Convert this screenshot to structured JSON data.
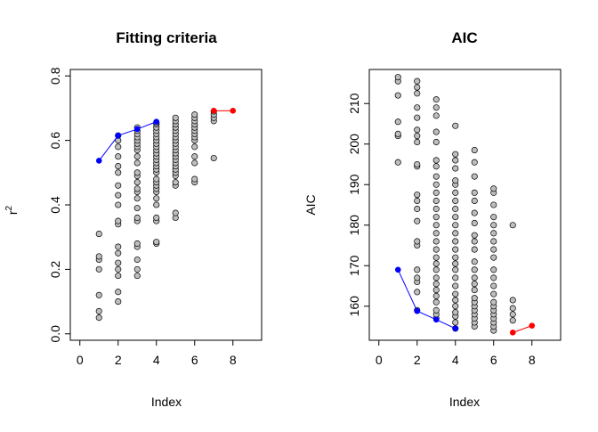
{
  "chart_data": [
    {
      "type": "scatter",
      "title": "Fitting criteria",
      "xlabel": "Index",
      "ylabel": "r",
      "ylabel_superscript": "2",
      "xlim": [
        -0.5,
        9.5
      ],
      "ylim": [
        -0.02,
        0.82
      ],
      "xticks": [
        0,
        2,
        4,
        6,
        8
      ],
      "yticks": [
        0.0,
        0.2,
        0.4,
        0.6,
        0.8
      ],
      "xtick_labels": [
        "0",
        "2",
        "4",
        "6",
        "8"
      ],
      "ytick_labels": [
        "0.0",
        "0.2",
        "0.4",
        "0.6",
        "0.8"
      ],
      "grid": false,
      "point_color": "#bebebe",
      "scatter_points": {
        "1": [
          0.05,
          0.07,
          0.12,
          0.2,
          0.23,
          0.24,
          0.31
        ],
        "2": [
          0.1,
          0.13,
          0.18,
          0.2,
          0.22,
          0.25,
          0.27,
          0.34,
          0.35,
          0.4,
          0.43,
          0.46,
          0.5,
          0.52,
          0.55,
          0.58,
          0.6,
          0.615
        ],
        "3": [
          0.18,
          0.2,
          0.23,
          0.27,
          0.28,
          0.35,
          0.36,
          0.39,
          0.42,
          0.44,
          0.45,
          0.47,
          0.49,
          0.5,
          0.53,
          0.55,
          0.57,
          0.58,
          0.59,
          0.6,
          0.61,
          0.62,
          0.63,
          0.64
        ],
        "4": [
          0.28,
          0.285,
          0.35,
          0.36,
          0.4,
          0.42,
          0.44,
          0.45,
          0.46,
          0.47,
          0.48,
          0.5,
          0.51,
          0.52,
          0.53,
          0.54,
          0.55,
          0.56,
          0.57,
          0.58,
          0.59,
          0.6,
          0.61,
          0.62,
          0.63,
          0.64,
          0.65,
          0.655
        ],
        "5": [
          0.36,
          0.375,
          0.46,
          0.47,
          0.49,
          0.5,
          0.51,
          0.52,
          0.53,
          0.54,
          0.55,
          0.56,
          0.57,
          0.58,
          0.59,
          0.6,
          0.61,
          0.62,
          0.63,
          0.64,
          0.65,
          0.66,
          0.67
        ],
        "6": [
          0.47,
          0.48,
          0.53,
          0.55,
          0.58,
          0.6,
          0.61,
          0.62,
          0.63,
          0.64,
          0.65,
          0.66,
          0.67,
          0.68
        ],
        "7": [
          0.545,
          0.66,
          0.67,
          0.68,
          0.69
        ]
      },
      "series": [
        {
          "color": "#0000ff",
          "x": [
            1,
            2,
            3,
            4
          ],
          "y": [
            0.537,
            0.615,
            0.635,
            0.658
          ]
        },
        {
          "color": "#ff0000",
          "x": [
            7,
            8
          ],
          "y": [
            0.692,
            0.692
          ]
        }
      ]
    },
    {
      "type": "scatter",
      "title": "AIC",
      "xlabel": "Index",
      "ylabel": "AIC",
      "xlim": [
        -0.5,
        9.5
      ],
      "ylim": [
        151.6,
        218.4
      ],
      "xticks": [
        0,
        2,
        4,
        6,
        8
      ],
      "yticks": [
        160,
        170,
        180,
        190,
        200,
        210
      ],
      "xtick_labels": [
        "0",
        "2",
        "4",
        "6",
        "8"
      ],
      "ytick_labels": [
        "160",
        "170",
        "180",
        "190",
        "200",
        "210"
      ],
      "grid": false,
      "point_color": "#bebebe",
      "scatter_points": {
        "1": [
          195.5,
          202,
          202.5,
          205.5,
          212,
          215.5,
          216.5
        ],
        "2": [
          159,
          163.5,
          166,
          167,
          169,
          175,
          176,
          181,
          184,
          186,
          187.5,
          194.5,
          195,
          200.5,
          202,
          203.5,
          206.5,
          209,
          212.5,
          214,
          215.5
        ],
        "3": [
          157,
          158,
          159,
          161,
          162.5,
          164,
          165.5,
          167,
          169,
          170.5,
          172,
          174,
          176,
          178,
          180,
          182,
          184,
          186,
          188,
          190,
          192,
          194.5,
          196,
          200.5,
          203,
          207,
          209,
          211
        ],
        "4": [
          154.5,
          156,
          157.5,
          158.5,
          160,
          161.5,
          163,
          165,
          167,
          169,
          170.5,
          172,
          174,
          176,
          178,
          180,
          182,
          184,
          186,
          188,
          190,
          191,
          194,
          196,
          197.5,
          204.5
        ],
        "5": [
          155,
          156,
          157,
          158,
          159,
          160,
          161,
          162,
          164,
          165.5,
          167,
          169,
          171,
          174,
          176,
          177.5,
          180.5,
          183,
          186,
          188,
          192,
          195.5,
          198.5
        ],
        "6": [
          154,
          155,
          156,
          157,
          158,
          159,
          160,
          161,
          163,
          165,
          167,
          169,
          172,
          174,
          176,
          178,
          180,
          182,
          185,
          188,
          189
        ],
        "7": [
          156.5,
          158,
          159.5,
          161.5,
          180
        ]
      },
      "series": [
        {
          "color": "#0000ff",
          "x": [
            1,
            2,
            3,
            4
          ],
          "y": [
            169,
            158.8,
            156.7,
            154.5
          ]
        },
        {
          "color": "#ff0000",
          "x": [
            7,
            8
          ],
          "y": [
            153.5,
            155.2
          ]
        }
      ]
    }
  ]
}
